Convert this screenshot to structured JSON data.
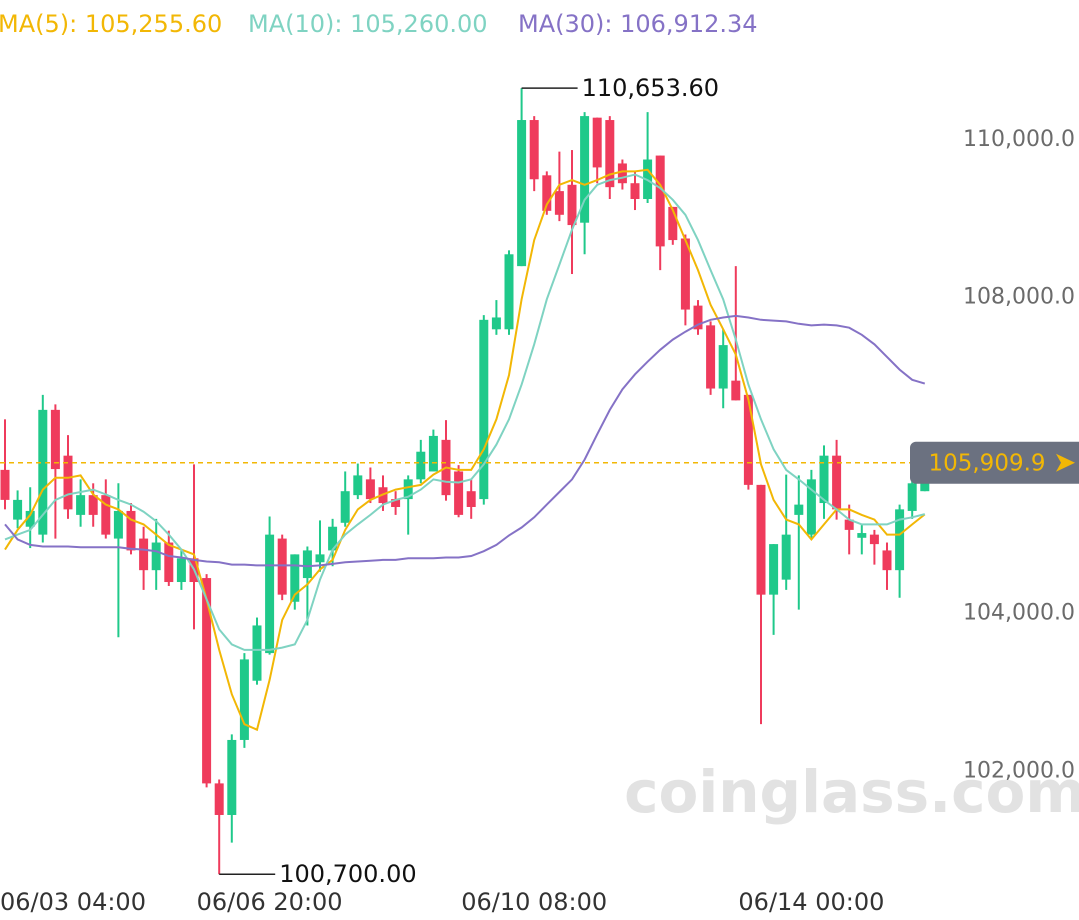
{
  "chart_data": {
    "type": "candlestick",
    "watermark": "coinglass.com",
    "categories": [
      null,
      "06/03 04:00",
      null,
      null,
      null,
      null,
      null,
      null,
      null,
      null,
      null,
      null,
      null,
      null,
      null,
      null,
      null,
      null,
      null,
      null,
      null,
      "06/06 20:00",
      null,
      null,
      null,
      null,
      null,
      null,
      null,
      null,
      null,
      null,
      null,
      null,
      null,
      null,
      null,
      null,
      null,
      null,
      null,
      null,
      "06/10 08:00",
      null,
      null,
      null,
      null,
      null,
      null,
      null,
      null,
      null,
      null,
      null,
      null,
      null,
      null,
      null,
      null,
      null,
      null,
      null,
      null,
      null,
      "06/14 00:00",
      null,
      null,
      null,
      null,
      null,
      null,
      null,
      null,
      null
    ],
    "open": [
      105820,
      105190,
      105100,
      105000,
      106580,
      106000,
      105250,
      105500,
      105500,
      104950,
      105300,
      104950,
      104550,
      104900,
      104400,
      104700,
      104450,
      101850,
      101450,
      102400,
      103150,
      103500,
      104950,
      104150,
      104450,
      104650,
      104800,
      105150,
      105500,
      105700,
      105600,
      105450,
      105450,
      105700,
      105800,
      106200,
      105800,
      105550,
      105450,
      107600,
      107600,
      108400,
      110250,
      109550,
      109350,
      109430,
      108950,
      110280,
      110250,
      109700,
      109450,
      109250,
      109800,
      109150,
      108750,
      107900,
      107650,
      106850,
      106950,
      106770,
      105630,
      104240,
      104430,
      105250,
      105000,
      105400,
      106000,
      105190,
      104960,
      105000,
      104800,
      104550,
      105300,
      105550
    ],
    "high": [
      106460,
      105560,
      105600,
      106770,
      106650,
      106260,
      105700,
      105650,
      105700,
      105650,
      105400,
      105100,
      105200,
      105050,
      104800,
      105890,
      104500,
      101900,
      102470,
      103500,
      103950,
      105230,
      105000,
      104750,
      104850,
      105180,
      105200,
      105800,
      105900,
      105850,
      105750,
      105550,
      105750,
      106200,
      106330,
      106450,
      105880,
      105700,
      107780,
      107970,
      108600,
      110653.6,
      110300,
      109600,
      109850,
      109870,
      110350,
      110280,
      110300,
      109750,
      109600,
      110350,
      109800,
      109150,
      108800,
      107970,
      107700,
      107600,
      108400,
      106770,
      105630,
      104880,
      105760,
      105750,
      105820,
      106130,
      106200,
      105380,
      105130,
      105060,
      104900,
      105380,
      105700,
      105960
    ],
    "low": [
      105320,
      105080,
      104830,
      104900,
      104950,
      105200,
      105100,
      105100,
      104950,
      103700,
      104750,
      104300,
      104300,
      104350,
      104300,
      103800,
      101800,
      100700,
      101100,
      102300,
      103100,
      103480,
      104170,
      104050,
      103850,
      104530,
      104600,
      105100,
      105450,
      105400,
      105300,
      105250,
      105000,
      105650,
      105800,
      105430,
      105220,
      105200,
      105380,
      107530,
      107530,
      108400,
      109350,
      109050,
      108970,
      108300,
      108550,
      109450,
      109250,
      109370,
      109110,
      109200,
      108350,
      108670,
      107650,
      107530,
      106770,
      106600,
      106700,
      105570,
      102600,
      103730,
      104300,
      104050,
      104940,
      105200,
      105190,
      104750,
      104750,
      104620,
      104300,
      104200,
      105200,
      105550
    ],
    "close": [
      105440,
      105440,
      105300,
      106580,
      105830,
      105320,
      105500,
      105250,
      105000,
      105300,
      104800,
      104550,
      104900,
      104400,
      104700,
      104400,
      101850,
      101450,
      102400,
      103420,
      103850,
      105000,
      104240,
      104750,
      104800,
      104750,
      105100,
      105550,
      105750,
      105450,
      105400,
      105350,
      105700,
      106050,
      106250,
      105500,
      105250,
      105350,
      107720,
      107750,
      108550,
      110250,
      109500,
      109100,
      109050,
      108920,
      110300,
      109650,
      109400,
      109450,
      109250,
      109750,
      108650,
      108730,
      107850,
      107600,
      106850,
      107400,
      106700,
      105630,
      104240,
      104880,
      105000,
      105380,
      105700,
      106000,
      105320,
      105060,
      105020,
      104880,
      104550,
      105320,
      105650,
      105909.9
    ],
    "up_color": "#1fc98a",
    "down_color": "#ef3b5c",
    "series": [
      {
        "name": "MA(5)",
        "legend_value": "105,255.60",
        "color": "#f2b705",
        "values": [
          104810,
          105060,
          105250,
          105570,
          105720,
          105720,
          105750,
          105510,
          105380,
          105320,
          105190,
          105130,
          105000,
          104870,
          104810,
          104750,
          104180,
          103540,
          102980,
          102600,
          102530,
          103160,
          103920,
          104240,
          104370,
          104560,
          104680,
          105060,
          105320,
          105440,
          105510,
          105570,
          105600,
          105630,
          105760,
          105850,
          105820,
          105820,
          106080,
          106460,
          107020,
          107980,
          108730,
          109180,
          109430,
          109490,
          109430,
          109490,
          109560,
          109600,
          109600,
          109620,
          109430,
          109110,
          108730,
          108350,
          107910,
          107600,
          107280,
          106710,
          105890,
          105440,
          105190,
          105130,
          104940,
          105130,
          105320,
          105320,
          105250,
          105190,
          105000,
          105000,
          105130,
          105255.6
        ]
      },
      {
        "name": "MA(10)",
        "legend_value": "105,260.00",
        "color": "#7fd3c2",
        "values": [
          104940,
          105000,
          105060,
          105250,
          105440,
          105510,
          105540,
          105570,
          105510,
          105440,
          105380,
          105290,
          105170,
          105000,
          104810,
          104560,
          104180,
          103800,
          103610,
          103540,
          103540,
          103540,
          103570,
          103610,
          103920,
          104430,
          104810,
          105000,
          105130,
          105250,
          105380,
          105440,
          105480,
          105570,
          105700,
          105670,
          105660,
          105700,
          105890,
          106140,
          106460,
          106900,
          107410,
          107980,
          108420,
          108860,
          109240,
          109430,
          109490,
          109520,
          109560,
          109490,
          109390,
          109240,
          109050,
          108730,
          108350,
          107980,
          107470,
          106900,
          106460,
          106080,
          105820,
          105700,
          105570,
          105440,
          105320,
          105190,
          105130,
          105130,
          105130,
          105190,
          105220,
          105260
        ]
      },
      {
        "name": "MA(30)",
        "legend_value": "106,912.34",
        "color": "#8572c6",
        "values": [
          105130,
          104940,
          104870,
          104850,
          104850,
          104850,
          104840,
          104840,
          104840,
          104840,
          104820,
          104810,
          104790,
          104730,
          104710,
          104680,
          104660,
          104650,
          104620,
          104620,
          104610,
          104610,
          104610,
          104610,
          104600,
          104610,
          104630,
          104650,
          104660,
          104670,
          104680,
          104680,
          104700,
          104700,
          104700,
          104710,
          104710,
          104730,
          104790,
          104870,
          104990,
          105090,
          105220,
          105380,
          105540,
          105700,
          105950,
          106270,
          106580,
          106840,
          107030,
          107190,
          107340,
          107470,
          107570,
          107660,
          107720,
          107750,
          107770,
          107750,
          107720,
          107710,
          107700,
          107670,
          107650,
          107660,
          107650,
          107620,
          107530,
          107410,
          107250,
          107090,
          106960,
          106912.34
        ]
      }
    ],
    "annotations": [
      {
        "label": "110,653.60",
        "value": 110653.6
      },
      {
        "label": "100,700.00",
        "value": 100700
      }
    ],
    "current_price": {
      "value": 105909.9,
      "label": "105,909.9",
      "color": "#f2b705"
    },
    "ylim": [
      100500,
      111770
    ],
    "yticks": [
      {
        "value": 102000,
        "label": "102,000.0"
      },
      {
        "value": 104000,
        "label": "104,000.0"
      },
      {
        "value": 108000,
        "label": "108,000.0"
      },
      {
        "value": 110000,
        "label": "110,000.0"
      }
    ],
    "grid": false
  }
}
